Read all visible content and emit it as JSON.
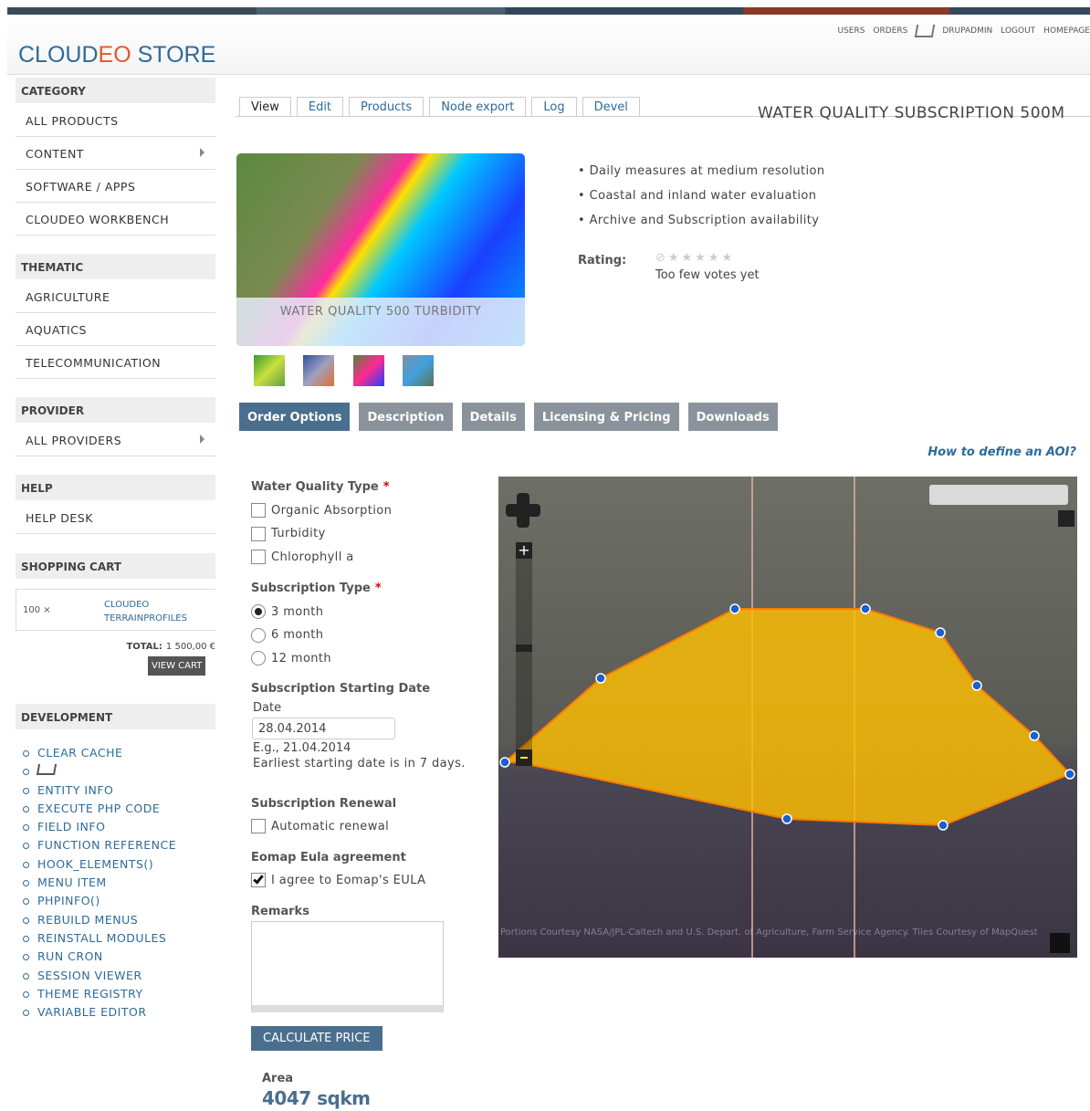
{
  "header": {
    "logo": [
      "CLOUD",
      "EO",
      " STORE"
    ],
    "nav": [
      "USERS",
      "ORDERS",
      "DRUPADMIN",
      "LOGOUT",
      "HOMEPAGE"
    ]
  },
  "sidebar": {
    "category": {
      "title": "CATEGORY",
      "items": [
        "ALL PRODUCTS",
        "CONTENT",
        "SOFTWARE / APPS",
        "CLOUDEO WORKBENCH"
      ]
    },
    "thematic": {
      "title": "THEMATIC",
      "items": [
        "AGRICULTURE",
        "AQUATICS",
        "TELECOMMUNICATION"
      ]
    },
    "provider": {
      "title": "PROVIDER",
      "items": [
        "ALL PROVIDERS"
      ]
    },
    "help": {
      "title": "HELP",
      "items": [
        "HELP DESK"
      ]
    },
    "cart": {
      "title": "SHOPPING CART",
      "qty": "100 ×",
      "item": "CLOUDEO TERRAINPROFILES",
      "total_label": "TOTAL:",
      "total": "1 500,00 €",
      "button": "VIEW CART"
    },
    "development": {
      "title": "DEVELOPMENT",
      "items": [
        "CLEAR CACHE",
        "ENTITY INFO",
        "EXECUTE PHP CODE",
        "FIELD INFO",
        "FUNCTION REFERENCE",
        "HOOK_ELEMENTS()",
        "MENU ITEM",
        "PHPINFO()",
        "REBUILD MENUS",
        "REINSTALL MODULES",
        "RUN CRON",
        "SESSION VIEWER",
        "THEME REGISTRY",
        "VARIABLE EDITOR"
      ]
    }
  },
  "tabs": [
    "View",
    "Edit",
    "Products",
    "Node export",
    "Log",
    "Devel"
  ],
  "title": "WATER QUALITY SUBSCRIPTION 500M",
  "image_caption": "WATER QUALITY 500 TURBIDITY",
  "features": [
    "Daily measures at medium resolution",
    "Coastal and inland water evaluation",
    "Archive and Subscription availability"
  ],
  "rating": {
    "label": "Rating:",
    "votes": "Too few votes yet"
  },
  "product_tabs": [
    "Order Options",
    "Description",
    "Details",
    "Licensing & Pricing",
    "Downloads"
  ],
  "aoi_help": "How to define an AOI?",
  "form": {
    "required_mark": "*",
    "water_quality": {
      "label": "Water Quality Type",
      "options": [
        "Organic Absorption",
        "Turbidity",
        "Chlorophyll a"
      ]
    },
    "subscription": {
      "label": "Subscription Type",
      "options": [
        "3 month",
        "6 month",
        "12 month"
      ]
    },
    "start_date": {
      "label": "Subscription Starting Date",
      "field_label": "Date",
      "value": "28.04.2014",
      "example": "E.g., 21.04.2014",
      "note": "Earliest starting date is in 7 days."
    },
    "renewal": {
      "label": "Subscription Renewal",
      "option": "Automatic renewal"
    },
    "eula": {
      "label": "Eomap Eula agreement",
      "option": "I agree to Eomap's EULA"
    },
    "remarks": {
      "label": "Remarks"
    },
    "button": "CALCULATE PRICE",
    "area": {
      "label": "Area",
      "value": "4047 sqkm"
    }
  },
  "map": {
    "attribution": "Portions Courtesy NASA/JPL-Caltech and U.S. Depart. of Agriculture, Farm Service Agency. Tiles Courtesy of MapQuest"
  }
}
